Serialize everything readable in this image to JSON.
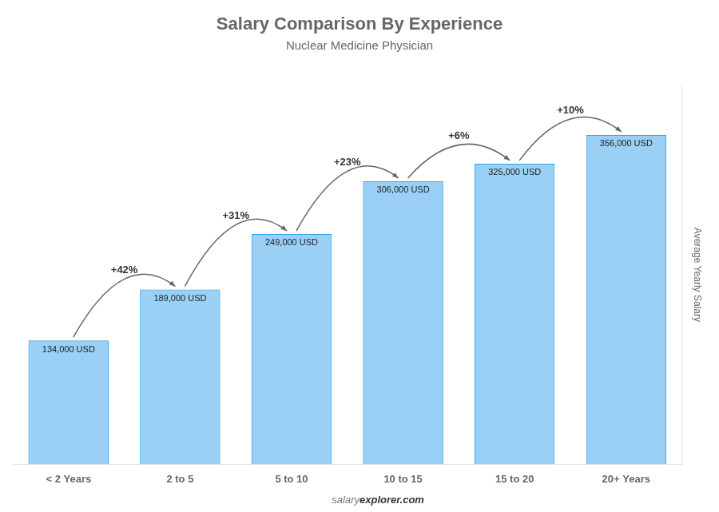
{
  "chart_data": {
    "type": "bar",
    "title": "Salary Comparison By Experience",
    "subtitle": "Nuclear Medicine Physician",
    "y_label": "Average Yearly Salary",
    "categories": [
      "< 2 Years",
      "2 to 5",
      "5 to 10",
      "10 to 15",
      "15 to 20",
      "20+ Years"
    ],
    "values": [
      134000,
      189000,
      249000,
      306000,
      325000,
      356000
    ],
    "value_labels": [
      "134,000 USD",
      "189,000 USD",
      "249,000 USD",
      "306,000 USD",
      "325,000 USD",
      "356,000 USD"
    ],
    "data_labels": true,
    "annotations": [
      "+42%",
      "+31%",
      "+23%",
      "+6%",
      "+10%"
    ],
    "footer": [
      "salary",
      "explorer.com"
    ],
    "ylim": [
      0,
      410000
    ],
    "tick_labels": "x",
    "grid": false
  }
}
